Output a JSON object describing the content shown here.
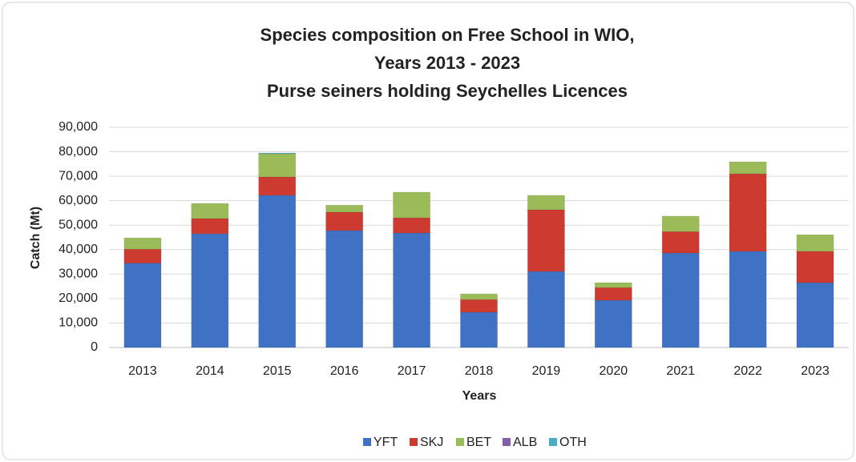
{
  "chart_data": {
    "type": "stacked_bar",
    "title": [
      "Species composition on Free School in WIO,",
      "Years 2013 - 2023",
      "Purse seiners holding  Seychelles Licences"
    ],
    "xlabel": "Years",
    "ylabel": "Catch (Mt)",
    "categories": [
      "2013",
      "2014",
      "2015",
      "2016",
      "2017",
      "2018",
      "2019",
      "2020",
      "2021",
      "2022",
      "2023"
    ],
    "series": [
      {
        "name": "YFT",
        "color": "#3f72c4",
        "values": [
          34500,
          46500,
          62200,
          47800,
          46800,
          14400,
          31100,
          19300,
          38600,
          39300,
          26500
        ]
      },
      {
        "name": "SKJ",
        "color": "#cc3a30",
        "values": [
          5700,
          6200,
          7500,
          7500,
          6200,
          5200,
          25200,
          5200,
          8800,
          31700,
          12800
        ]
      },
      {
        "name": "BET",
        "color": "#9bbb59",
        "values": [
          4600,
          6200,
          9500,
          2900,
          10500,
          2300,
          5900,
          2000,
          6300,
          4900,
          6800
        ]
      },
      {
        "name": "ALB",
        "color": "#7f60a8",
        "values": [
          0,
          0,
          0,
          0,
          0,
          0,
          0,
          0,
          0,
          0,
          0
        ]
      },
      {
        "name": "OTH",
        "color": "#4bacc6",
        "values": [
          0,
          0,
          300,
          0,
          0,
          0,
          0,
          0,
          0,
          0,
          0
        ]
      }
    ],
    "ylim": [
      0,
      90000
    ],
    "yticks": [
      0,
      {
        "value": 10000,
        "label": "10,000"
      },
      {
        "value": 20000,
        "label": "20,000"
      },
      {
        "value": 30000,
        "label": "30,000"
      },
      {
        "value": 40000,
        "label": "40,000"
      },
      {
        "value": 50000,
        "label": "50,000"
      },
      {
        "value": 60000,
        "label": "60,000"
      },
      {
        "value": 70000,
        "label": "70,000"
      },
      {
        "value": 80000,
        "label": "80,000"
      },
      {
        "value": 90000,
        "label": "90,000"
      }
    ],
    "grid": true,
    "legend": "bottom"
  }
}
